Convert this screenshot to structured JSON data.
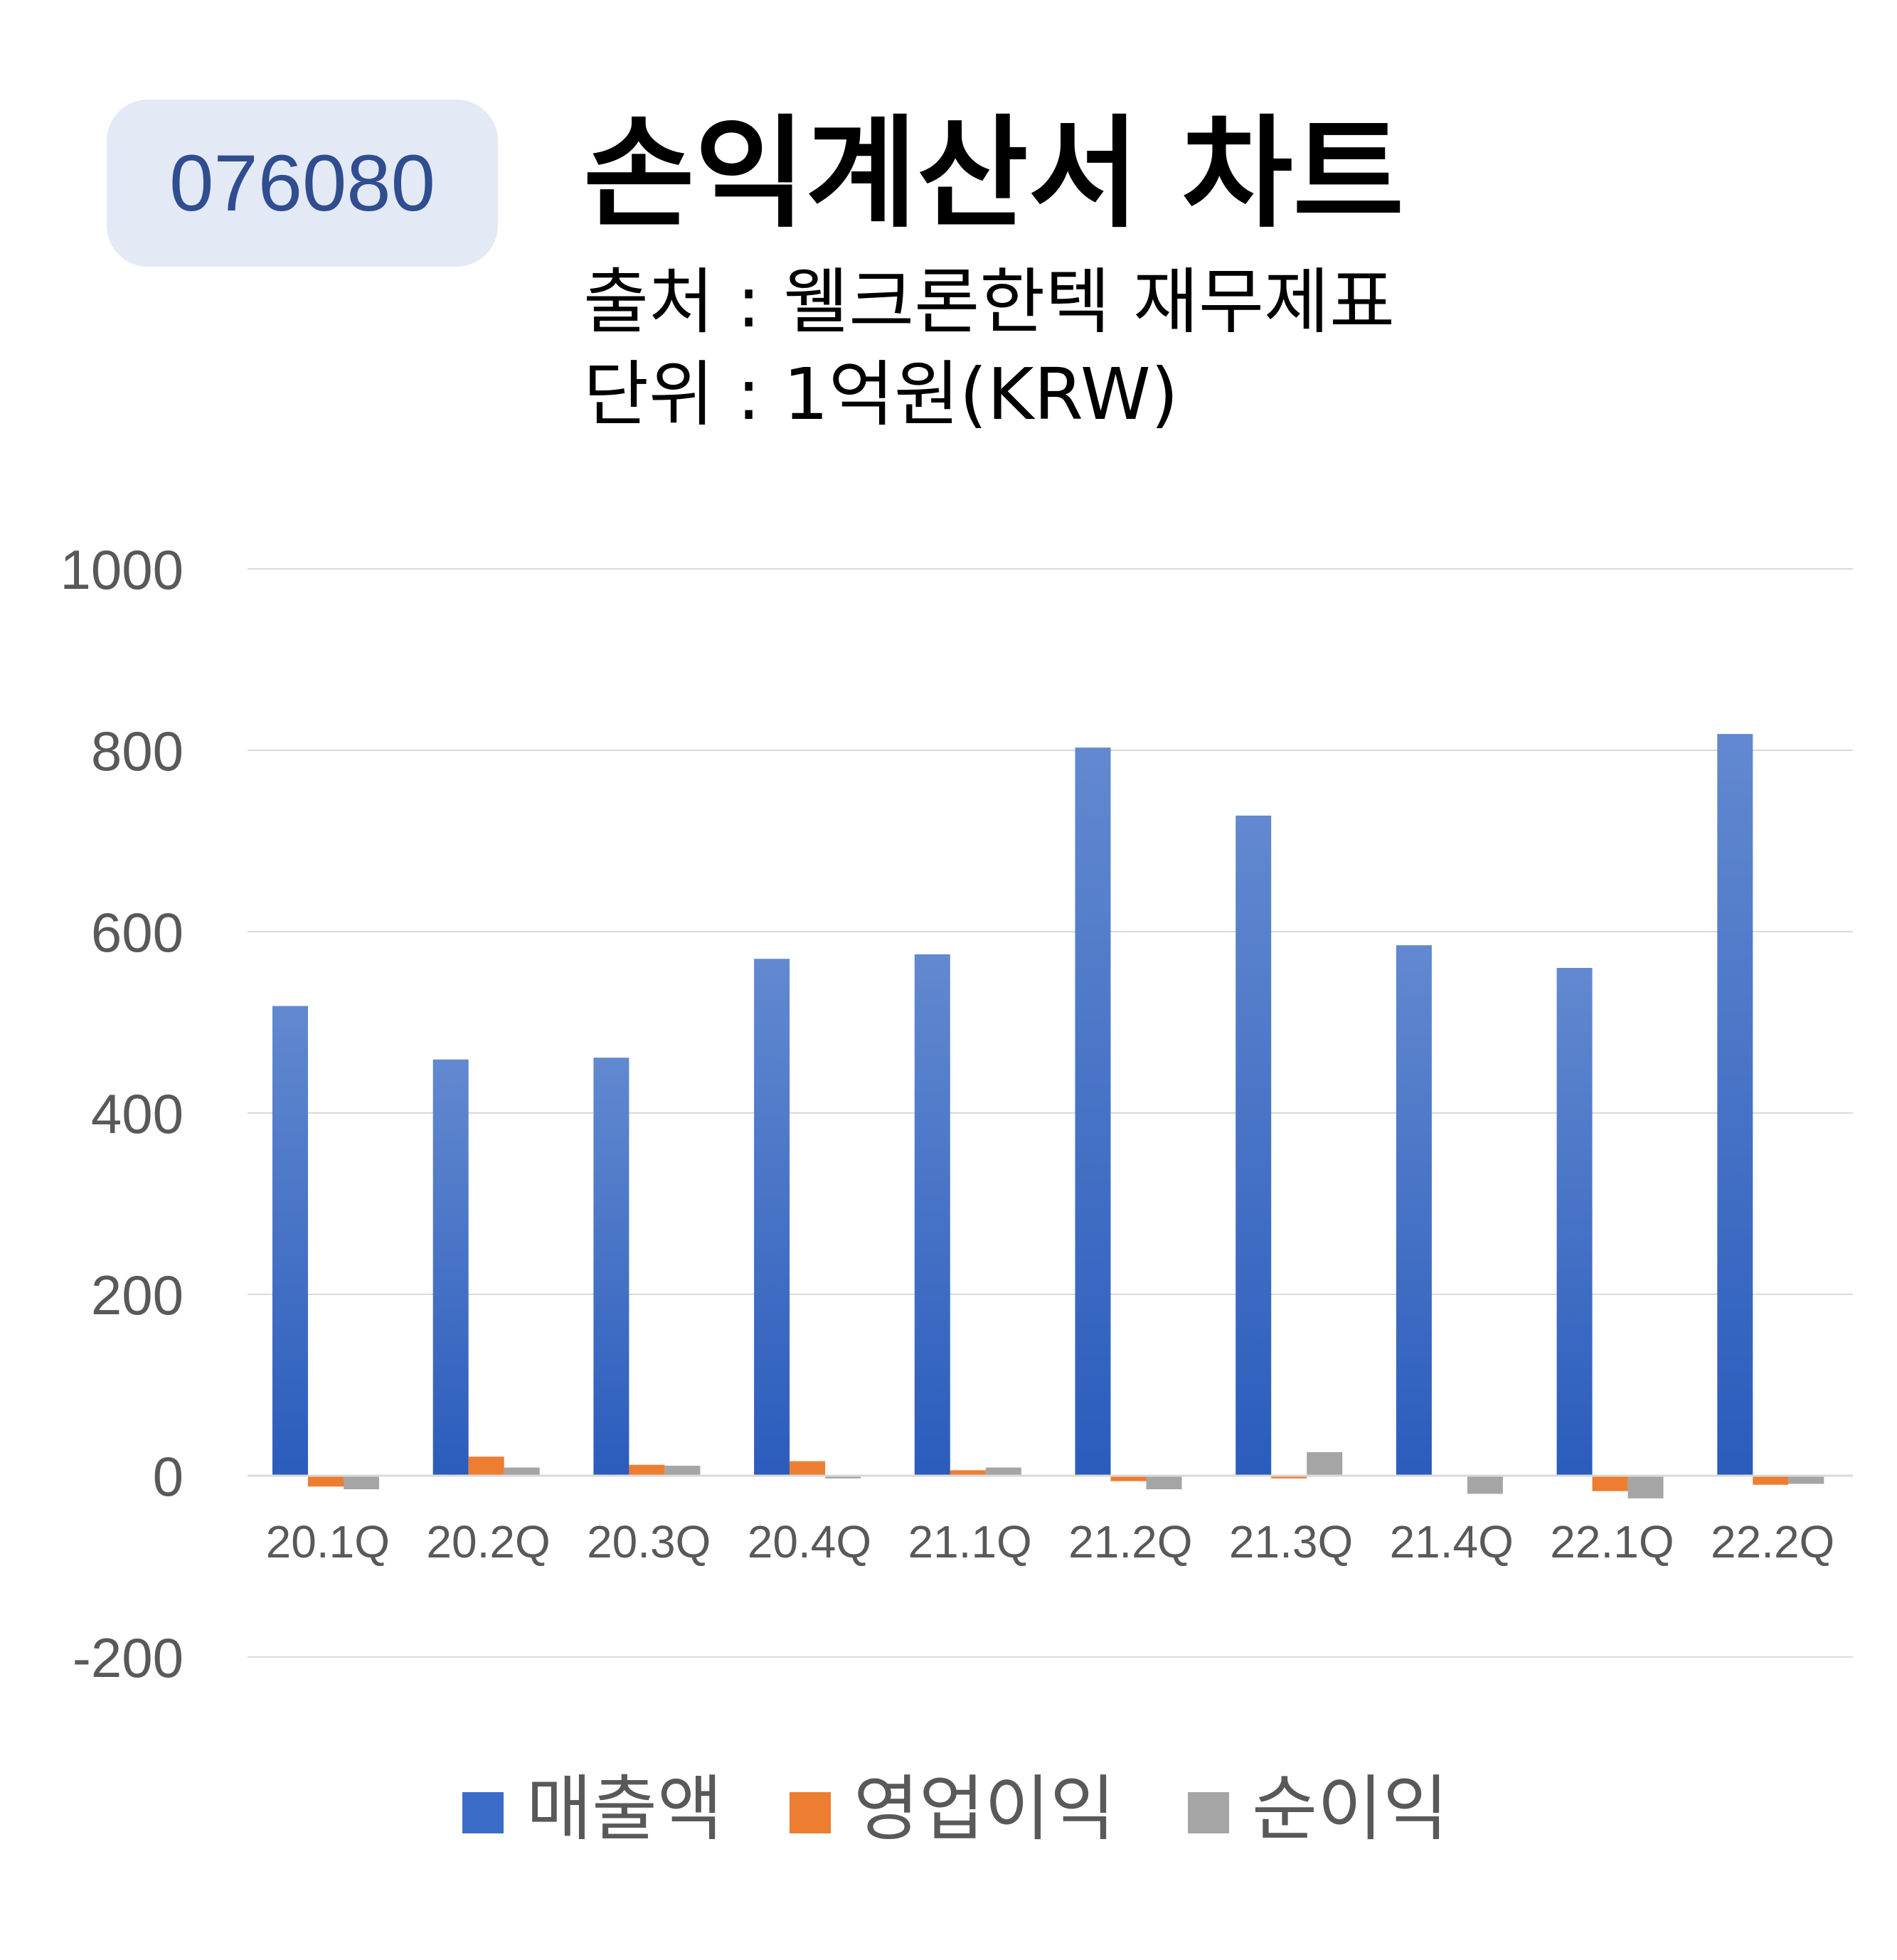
{
  "ticker": "076080",
  "title": "손익계산서 차트",
  "source_line": "출처 : 웰크론한텍 재무제표",
  "unit_line": "단위 : 1억원(KRW)",
  "colors": {
    "sales": "#3b6cc8",
    "operating": "#ed7d31",
    "net": "#a5a5a5",
    "badge_bg": "#e3e9f5",
    "badge_text": "#2f4d8f"
  },
  "chart_data": {
    "type": "bar",
    "categories": [
      "20.1Q",
      "20.2Q",
      "20.3Q",
      "20.4Q",
      "21.1Q",
      "21.2Q",
      "21.3Q",
      "21.4Q",
      "22.1Q",
      "22.2Q"
    ],
    "series": [
      {
        "name": "매출액",
        "values": [
          518,
          459,
          461,
          570,
          575,
          803,
          728,
          585,
          560,
          818
        ]
      },
      {
        "name": "영업이익",
        "values": [
          -12,
          21,
          12,
          16,
          6,
          -6,
          -3,
          0,
          -17,
          -10
        ]
      },
      {
        "name": "순이익",
        "values": [
          -15,
          9,
          11,
          -3,
          9,
          -15,
          26,
          -20,
          -25,
          -9
        ]
      }
    ],
    "yticks": [
      "1000",
      "800",
      "600",
      "400",
      "200",
      "0",
      "-200"
    ],
    "ylim": [
      -200,
      1000
    ],
    "grid": true,
    "legend_position": "bottom"
  }
}
